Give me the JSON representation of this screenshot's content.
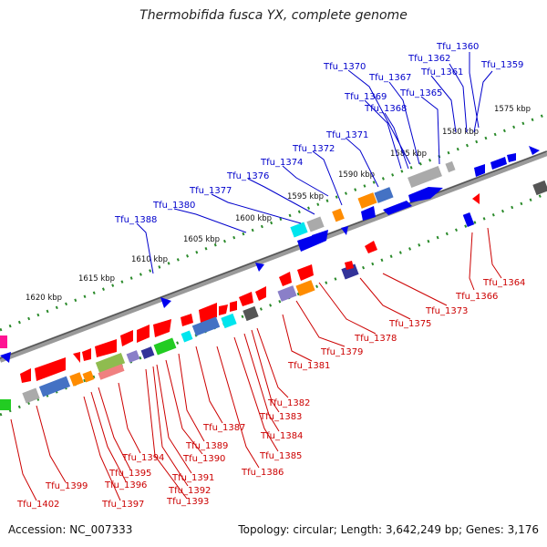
{
  "title": "Thermobifida fusca YX, complete genome",
  "accession": "Accession: NC_007333",
  "summary": "Topology: circular; Length: 3,642,249 bp; Genes: 3,176",
  "colors": {
    "forward_label": "#0000cc",
    "reverse_label": "#cc0000",
    "backbone": "#888888",
    "dotted_track": "#228822"
  },
  "kbp_ticks": [
    "1575 kbp",
    "1580 kbp",
    "1585 kbp",
    "1590 kbp",
    "1595 kbp",
    "1600 kbp",
    "1605 kbp",
    "1610 kbp",
    "1615 kbp",
    "1620 kbp"
  ],
  "forward_labels": [
    "Tfu_1360",
    "Tfu_1362",
    "Tfu_1361",
    "Tfu_1359",
    "Tfu_1370",
    "Tfu_1367",
    "Tfu_1369",
    "Tfu_1365",
    "Tfu_1368",
    "Tfu_1371",
    "Tfu_1372",
    "Tfu_1374",
    "Tfu_1376",
    "Tfu_1377",
    "Tfu_1380",
    "Tfu_1388"
  ],
  "reverse_labels": [
    "Tfu_1364",
    "Tfu_1366",
    "Tfu_1373",
    "Tfu_1375",
    "Tfu_1378",
    "Tfu_1379",
    "Tfu_1381",
    "Tfu_1382",
    "Tfu_1383",
    "Tfu_1384",
    "Tfu_1385",
    "Tfu_1386",
    "Tfu_1387",
    "Tfu_1389",
    "Tfu_1390",
    "Tfu_1391",
    "Tfu_1392",
    "Tfu_1393",
    "Tfu_1394",
    "Tfu_1395",
    "Tfu_1396",
    "Tfu_1397",
    "Tfu_1399",
    "Tfu_1402"
  ]
}
